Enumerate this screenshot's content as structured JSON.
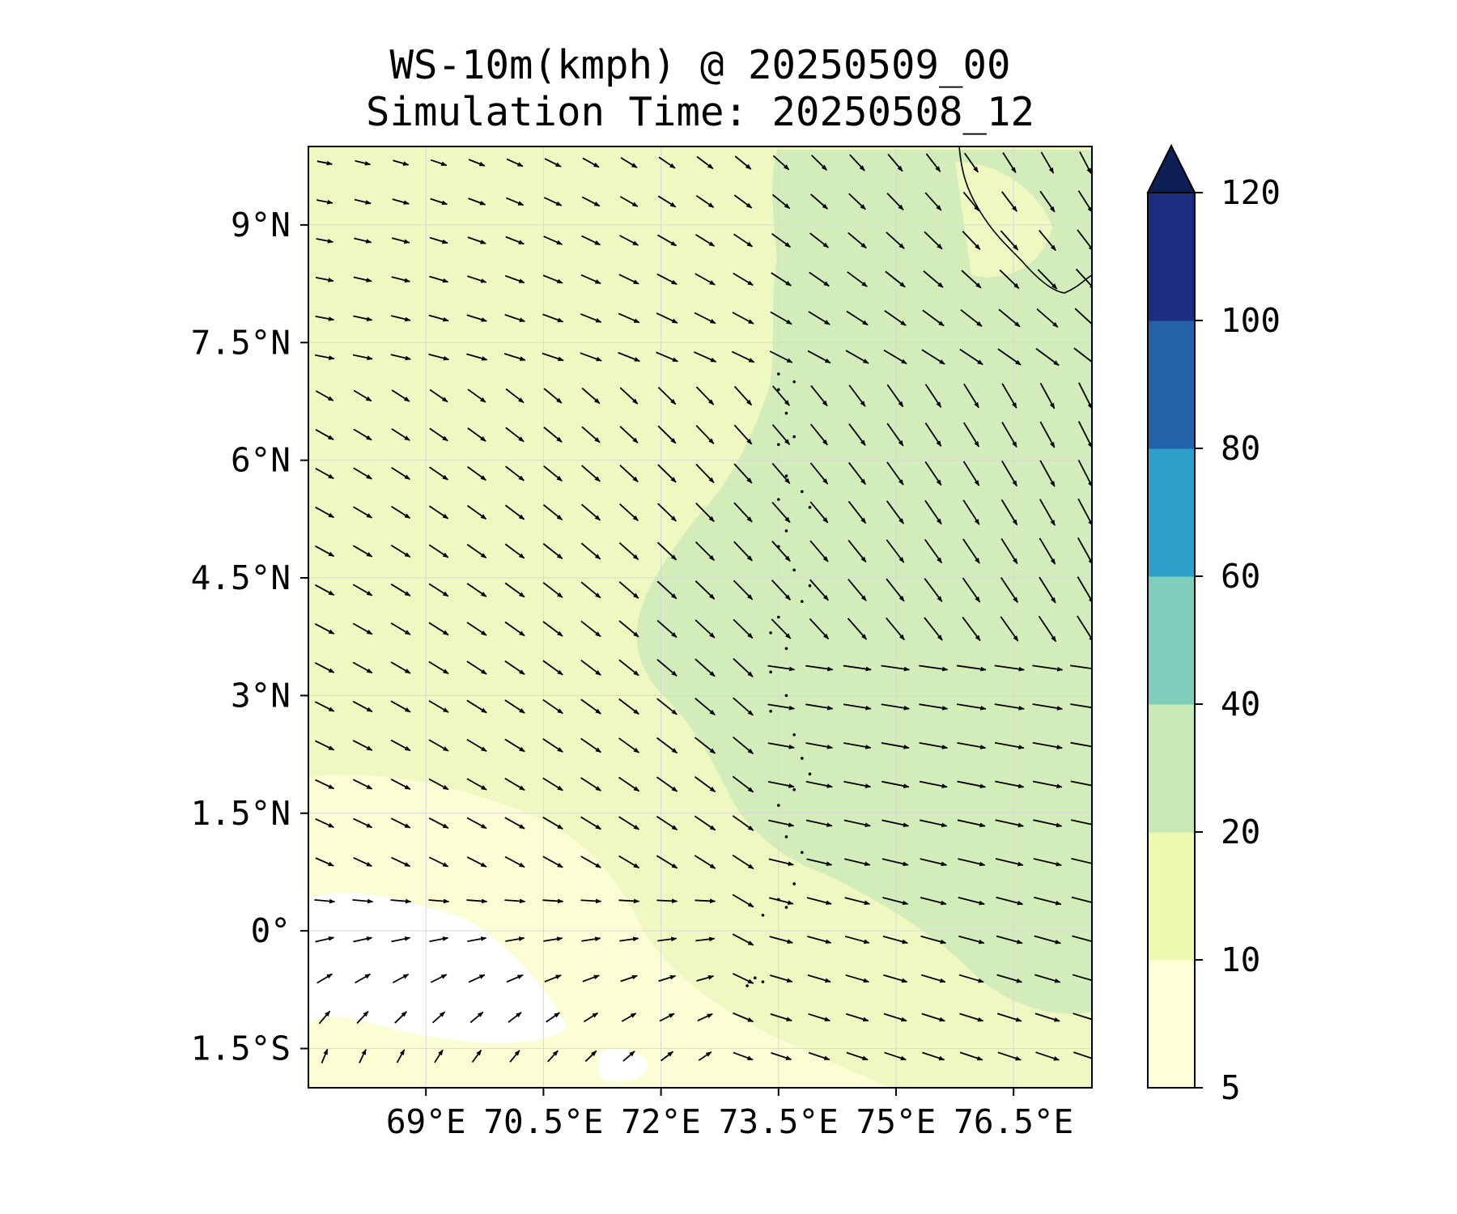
{
  "title": {
    "line1": "WS-10m(kmph) @ 20250509_00",
    "line2": "Simulation Time: 20250508_12"
  },
  "map": {
    "lon_range": [
      67.5,
      77.5
    ],
    "lat_range": [
      -2,
      10
    ],
    "x_ticks": [
      {
        "value": 69.0,
        "label": "69°E"
      },
      {
        "value": 70.5,
        "label": "70.5°E"
      },
      {
        "value": 72.0,
        "label": "72°E"
      },
      {
        "value": 73.5,
        "label": "73.5°E"
      },
      {
        "value": 75.0,
        "label": "75°E"
      },
      {
        "value": 76.5,
        "label": "76.5°E"
      }
    ],
    "y_ticks": [
      {
        "value": 9.0,
        "label": "9°N"
      },
      {
        "value": 7.5,
        "label": "7.5°N"
      },
      {
        "value": 6.0,
        "label": "6°N"
      },
      {
        "value": 4.5,
        "label": "4.5°N"
      },
      {
        "value": 3.0,
        "label": "3°N"
      },
      {
        "value": 1.5,
        "label": "1.5°N"
      },
      {
        "value": 0.0,
        "label": "0°"
      },
      {
        "value": -1.5,
        "label": "1.5°S"
      }
    ],
    "gridlines": true,
    "wind_vectors": "grid of black arrows, mostly pointing east/southeast; southwest region near equator shows weak winds pointing north/northeast",
    "coastline": "southern tip of India / Sri Lanka at top-right; Maldives atolls as dotted islands near 73.5°E"
  },
  "colorbar": {
    "boundaries": [
      5,
      10,
      20,
      40,
      60,
      80,
      100,
      120
    ],
    "labels": [
      "5",
      "10",
      "20",
      "40",
      "60",
      "80",
      "100",
      "120"
    ],
    "colors": [
      "#ffffd9",
      "#edf8b1",
      "#c7e9b4",
      "#7fcdbb",
      "#2ca0c8",
      "#2362a9",
      "#1c2c80"
    ],
    "extend_color": "#0d1f55",
    "extend": "max"
  },
  "field_colors": {
    "below_5": "#ffffff",
    "5_to_10": "#fbfdd5",
    "10_to_20": "#eef8c0",
    "20_to_40": "#d2edba"
  }
}
